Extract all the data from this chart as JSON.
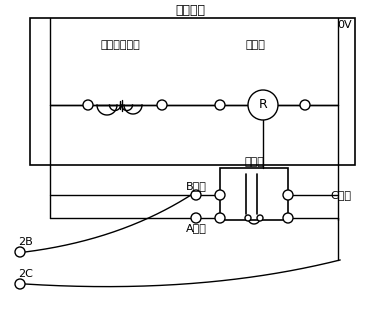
{
  "title": "冲床回路",
  "ov_label": "0V",
  "box_label": "继电器",
  "label_emergency": "冲床急停按鈕",
  "label_abnormal": "异常灯",
  "label_B": "B接点",
  "label_A": "A接点",
  "label_C": "C接点",
  "label_2B": "2B",
  "label_2C": "2C",
  "bg_color": "#ffffff",
  "line_color": "#000000",
  "font_color": "#000000",
  "fig_width": 3.81,
  "fig_height": 3.21,
  "dpi": 100
}
